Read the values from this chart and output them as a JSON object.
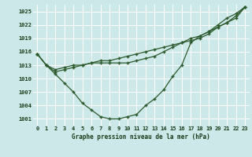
{
  "title": "Graphe pression niveau de la mer (hPa)",
  "bg_color": "#cce8e8",
  "grid_color": "#ffffff",
  "line_color": "#2d5a2d",
  "marker_color": "#2d5a2d",
  "ylim": [
    999.5,
    1026.5
  ],
  "yticks": [
    1001,
    1004,
    1007,
    1010,
    1013,
    1016,
    1019,
    1022,
    1025
  ],
  "xlim": [
    -0.5,
    23.5
  ],
  "xticks": [
    0,
    1,
    2,
    3,
    4,
    5,
    6,
    7,
    8,
    9,
    10,
    11,
    12,
    13,
    14,
    15,
    16,
    17,
    18,
    19,
    20,
    21,
    22,
    23
  ],
  "series": [
    [
      1015.5,
      1013.0,
      1011.0,
      1009.0,
      1007.0,
      1004.5,
      1003.0,
      1001.5,
      1001.0,
      1001.0,
      1001.5,
      1002.0,
      1004.0,
      1005.5,
      1007.5,
      1010.5,
      1013.0,
      1018.0,
      1019.5,
      1020.5,
      1022.0,
      1023.5,
      1024.5,
      1026.0
    ],
    [
      1015.5,
      1013.0,
      1012.0,
      1012.5,
      1013.0,
      1013.0,
      1013.5,
      1013.5,
      1013.5,
      1013.5,
      1013.5,
      1014.0,
      1014.5,
      1015.0,
      1016.0,
      1017.0,
      1018.0,
      1019.0,
      1019.5,
      1020.5,
      1021.5,
      1022.5,
      1023.5,
      1026.0
    ],
    [
      1015.5,
      1013.0,
      1011.5,
      1012.0,
      1012.5,
      1013.0,
      1013.5,
      1014.0,
      1014.0,
      1014.5,
      1015.0,
      1015.5,
      1016.0,
      1016.5,
      1017.0,
      1017.5,
      1018.0,
      1018.5,
      1019.0,
      1020.0,
      1021.5,
      1022.5,
      1024.0,
      1026.0
    ]
  ]
}
